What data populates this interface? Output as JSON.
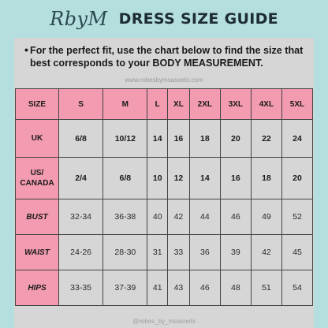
{
  "header": {
    "brand": "RbyM",
    "title": "DRESS SIZE GUIDE"
  },
  "instructions": {
    "bullet": "•",
    "text": "For the perfect fit, use the chart below to find the size that best corresponds to your BODY MEASUREMENT."
  },
  "watermarks": {
    "top": "www.robesbymsasoebi.com",
    "bottom": "@robes_by_msasoebi"
  },
  "colors": {
    "background": "#b5dede",
    "card": "#d6d6d6",
    "header_pink": "#f39bb0"
  },
  "table": {
    "corner": "SIZE",
    "columns": [
      "S",
      "M",
      "L",
      "XL",
      "2XL",
      "3XL",
      "4XL",
      "5XL"
    ],
    "rows": [
      {
        "label": "UK",
        "values": [
          "6/8",
          "10/12",
          "14",
          "16",
          "18",
          "20",
          "22",
          "24"
        ]
      },
      {
        "label_line1": "US/",
        "label_line2": "CANADA",
        "values": [
          "2/4",
          "6/8",
          "10",
          "12",
          "14",
          "16",
          "18",
          "20"
        ]
      },
      {
        "label": "BUST",
        "values": [
          "32-34",
          "36-38",
          "40",
          "42",
          "44",
          "46",
          "49",
          "52"
        ]
      },
      {
        "label": "WAIST",
        "values": [
          "24-26",
          "28-30",
          "31",
          "33",
          "36",
          "39",
          "42",
          "45"
        ]
      },
      {
        "label": "HIPS",
        "values": [
          "33-35",
          "37-39",
          "41",
          "43",
          "46",
          "48",
          "51",
          "54"
        ]
      }
    ]
  }
}
